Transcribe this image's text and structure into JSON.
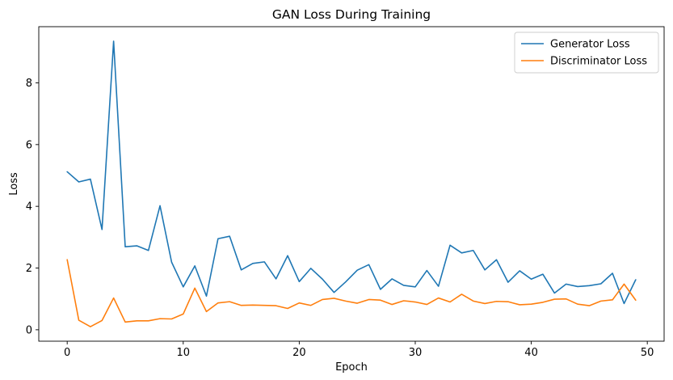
{
  "chart_data": {
    "type": "line",
    "title": "GAN Loss During Training",
    "xlabel": "Epoch",
    "ylabel": "Loss",
    "xlim": [
      -2.45,
      51.45
    ],
    "ylim": [
      -0.37,
      9.82
    ],
    "xticks": [
      0,
      10,
      20,
      30,
      40,
      50
    ],
    "yticks": [
      0,
      2,
      4,
      6,
      8
    ],
    "grid": false,
    "legend_position": "upper right",
    "series": [
      {
        "name": "Generator Loss",
        "color": "#1f77b4",
        "x": [
          0,
          1,
          2,
          3,
          4,
          5,
          6,
          7,
          8,
          9,
          10,
          11,
          12,
          13,
          14,
          15,
          16,
          17,
          18,
          19,
          20,
          21,
          22,
          23,
          24,
          25,
          26,
          27,
          28,
          29,
          30,
          31,
          32,
          33,
          34,
          35,
          36,
          37,
          38,
          39,
          40,
          41,
          42,
          43,
          44,
          45,
          46,
          47,
          48,
          49
        ],
        "values": [
          5.12,
          4.79,
          4.88,
          3.25,
          9.35,
          2.69,
          2.72,
          2.57,
          4.02,
          2.19,
          1.39,
          2.07,
          1.09,
          2.95,
          3.03,
          1.94,
          2.15,
          2.2,
          1.65,
          2.4,
          1.56,
          1.99,
          1.64,
          1.21,
          1.55,
          1.93,
          2.11,
          1.31,
          1.65,
          1.44,
          1.39,
          1.92,
          1.41,
          2.74,
          2.49,
          2.57,
          1.94,
          2.27,
          1.54,
          1.91,
          1.64,
          1.8,
          1.19,
          1.48,
          1.4,
          1.43,
          1.49,
          1.83,
          0.85,
          1.62
        ]
      },
      {
        "name": "Discriminator Loss",
        "color": "#ff7f0e",
        "x": [
          0,
          1,
          2,
          3,
          4,
          5,
          6,
          7,
          8,
          9,
          10,
          11,
          12,
          13,
          14,
          15,
          16,
          17,
          18,
          19,
          20,
          21,
          22,
          23,
          24,
          25,
          26,
          27,
          28,
          29,
          30,
          31,
          32,
          33,
          34,
          35,
          36,
          37,
          38,
          39,
          40,
          41,
          42,
          43,
          44,
          45,
          46,
          47,
          48,
          49
        ],
        "values": [
          2.27,
          0.31,
          0.1,
          0.3,
          1.03,
          0.25,
          0.29,
          0.29,
          0.36,
          0.35,
          0.51,
          1.35,
          0.59,
          0.87,
          0.91,
          0.79,
          0.8,
          0.79,
          0.78,
          0.69,
          0.87,
          0.79,
          0.98,
          1.02,
          0.93,
          0.86,
          0.98,
          0.96,
          0.82,
          0.94,
          0.9,
          0.82,
          1.03,
          0.9,
          1.15,
          0.93,
          0.85,
          0.92,
          0.91,
          0.81,
          0.83,
          0.89,
          0.99,
          1.0,
          0.83,
          0.78,
          0.93,
          0.97,
          1.48,
          0.96
        ]
      }
    ]
  }
}
